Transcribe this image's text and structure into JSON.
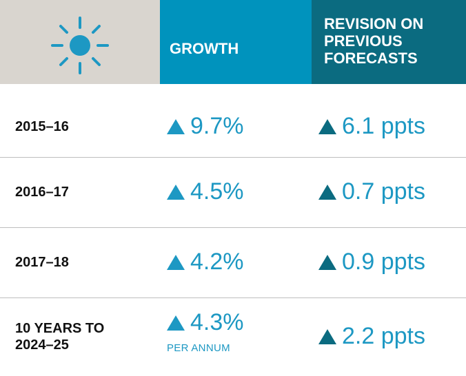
{
  "header": {
    "columns": [
      "GROWTH",
      "REVISION ON PREVIOUS FORECASTS"
    ]
  },
  "rows": [
    {
      "label": "2015–16",
      "growth": "9.7%",
      "revision": "6.1 ppts"
    },
    {
      "label": "2016–17",
      "growth": "4.5%",
      "revision": "0.7 ppts"
    },
    {
      "label": "2017–18",
      "growth": "4.2%",
      "revision": "0.9 ppts"
    },
    {
      "label": "10 YEARS TO 2024–25",
      "growth": "4.3%",
      "growth_note": "PER ANNUM",
      "revision": "2.2 ppts"
    }
  ]
}
